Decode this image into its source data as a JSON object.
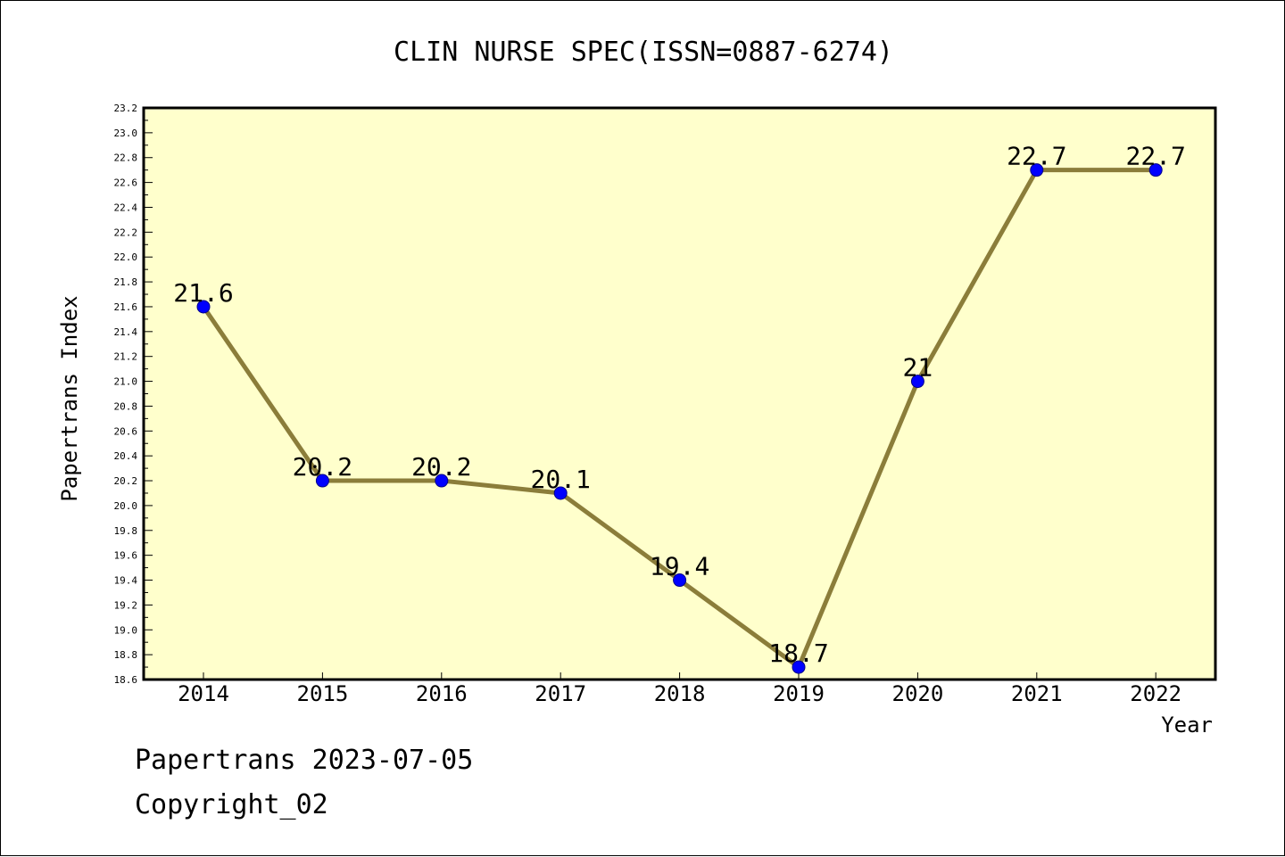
{
  "chart_data": {
    "type": "line",
    "title": "CLIN NURSE SPEC(ISSN=0887-6274)",
    "xlabel": "Year",
    "ylabel": "Papertrans Index",
    "categories": [
      "2014",
      "2015",
      "2016",
      "2017",
      "2018",
      "2019",
      "2020",
      "2021",
      "2022"
    ],
    "series": [
      {
        "values": [
          21.6,
          20.2,
          20.2,
          20.1,
          19.4,
          18.7,
          21,
          22.7,
          22.7
        ],
        "labels": [
          "21.6",
          "20.2",
          "20.2",
          "20.1",
          "19.4",
          "18.7",
          "21",
          "22.7",
          "22.7"
        ]
      }
    ],
    "ylim": [
      18.6,
      23.2
    ],
    "y_major_ticks": [
      "18.6",
      "18.8",
      "19.0",
      "19.2",
      "19.4",
      "19.6",
      "19.8",
      "20.0",
      "20.2",
      "20.4",
      "20.6",
      "20.8",
      "21.0",
      "21.2",
      "21.4",
      "21.6",
      "21.8",
      "22.0",
      "22.2",
      "22.4",
      "22.6",
      "22.8",
      "23.0",
      "23.2"
    ],
    "grid": false,
    "colors": {
      "plot_background": "#ffffcc",
      "line": "#8b7d3a",
      "marker": "#0000ff"
    }
  },
  "footer": {
    "line1": "Papertrans 2023-07-05",
    "line2": "Copyright_02"
  }
}
